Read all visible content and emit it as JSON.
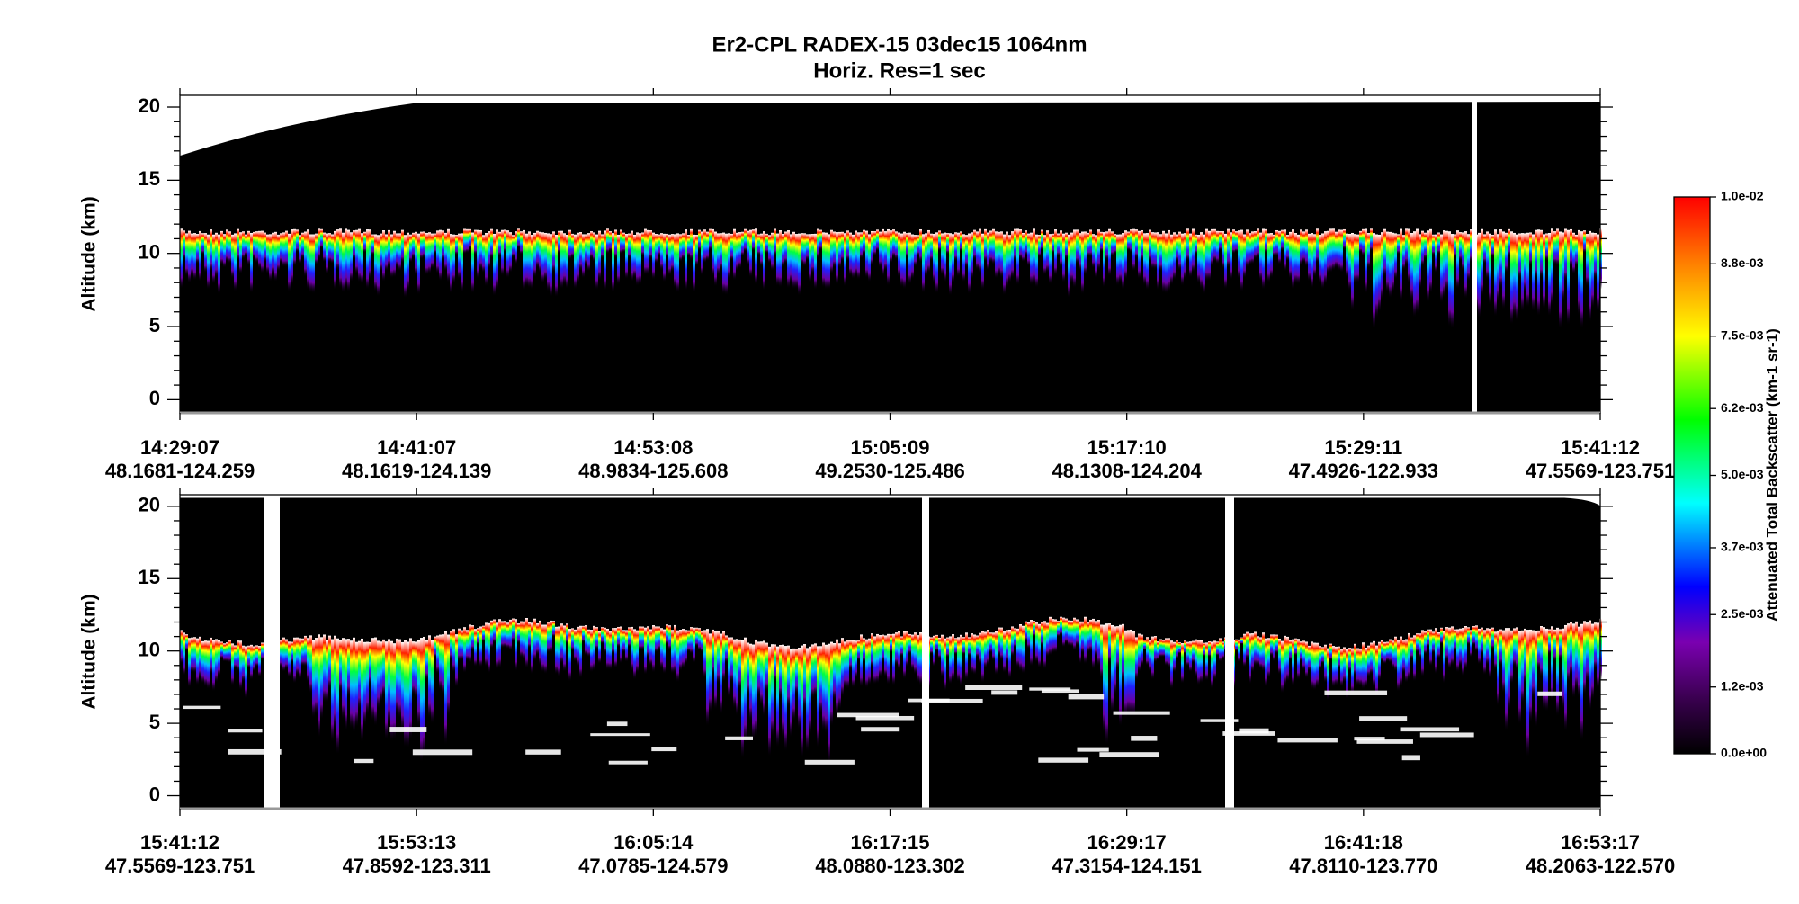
{
  "title": "Er2-CPL  RADEX-15  03dec15  1064nm",
  "subtitle": "Horiz. Res=1 sec",
  "chart_data": [
    {
      "type": "curtain",
      "ylabel": "Altitude (km)",
      "ylim": [
        -0.9,
        20.8
      ],
      "yticks": [
        0,
        5,
        10,
        15,
        20
      ],
      "categories": [
        "14:29:07",
        "14:41:07",
        "14:53:08",
        "15:05:09",
        "15:17:10",
        "15:29:11",
        "15:41:12"
      ],
      "locations": [
        "48.1681-124.259",
        "48.1619-124.139",
        "48.9834-125.608",
        "49.2530-125.486",
        "48.1308-124.204",
        "47.4926-122.933",
        "47.5569-123.751"
      ]
    },
    {
      "type": "curtain",
      "ylabel": "Altitude (km)",
      "ylim": [
        -0.9,
        20.8
      ],
      "yticks": [
        0,
        5,
        10,
        15,
        20
      ],
      "categories": [
        "15:41:12",
        "15:53:13",
        "16:05:14",
        "16:17:15",
        "16:29:17",
        "16:41:18",
        "16:53:17"
      ],
      "locations": [
        "47.5569-123.751",
        "47.8592-123.311",
        "47.0785-124.579",
        "48.0880-123.302",
        "47.3154-124.151",
        "47.8110-123.770",
        "48.2063-122.570"
      ]
    }
  ],
  "colorbar": {
    "label": "Attenuated Total Backscatter (km-1 sr-1)",
    "lim": [
      0,
      0.01
    ],
    "ticks": [
      {
        "value": 0,
        "label": "0.0e+00"
      },
      {
        "value": 0.0012,
        "label": "1.2e-03"
      },
      {
        "value": 0.0025,
        "label": "2.5e-03"
      },
      {
        "value": 0.0037,
        "label": "3.7e-03"
      },
      {
        "value": 0.005,
        "label": "5.0e-03"
      },
      {
        "value": 0.0062,
        "label": "6.2e-03"
      },
      {
        "value": 0.0075,
        "label": "7.5e-03"
      },
      {
        "value": 0.0088,
        "label": "8.8e-03"
      },
      {
        "value": 0.01,
        "label": "1.0e-02"
      }
    ]
  }
}
